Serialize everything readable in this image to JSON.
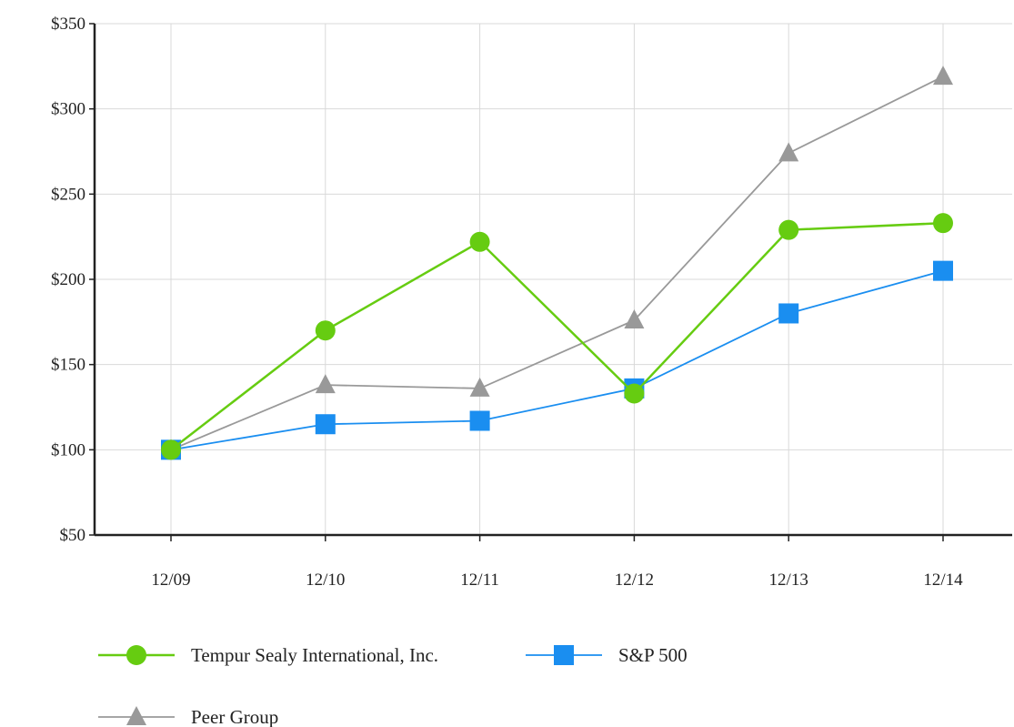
{
  "chart_data": {
    "type": "line",
    "title": "",
    "xlabel": "",
    "ylabel": "",
    "categories": [
      "12/09",
      "12/10",
      "12/11",
      "12/12",
      "12/13",
      "12/14"
    ],
    "ylim": [
      50,
      350
    ],
    "yticks": [
      50,
      100,
      150,
      200,
      250,
      300,
      350
    ],
    "ytick_labels": [
      "$50",
      "$100",
      "$150",
      "$200",
      "$250",
      "$300",
      "$350"
    ],
    "grid": true,
    "legend_position": "bottom-left",
    "series": [
      {
        "name": "Tempur Sealy International, Inc.",
        "values": [
          100,
          170,
          222,
          133,
          229,
          233
        ],
        "color": "#66cc11",
        "marker": "circle"
      },
      {
        "name": "S&P 500",
        "values": [
          100,
          115,
          117,
          136,
          180,
          205
        ],
        "color": "#1a8ef0",
        "marker": "square"
      },
      {
        "name": "Peer Group",
        "values": [
          100,
          138,
          136,
          176,
          274,
          319
        ],
        "color": "#999999",
        "marker": "triangle"
      }
    ]
  }
}
